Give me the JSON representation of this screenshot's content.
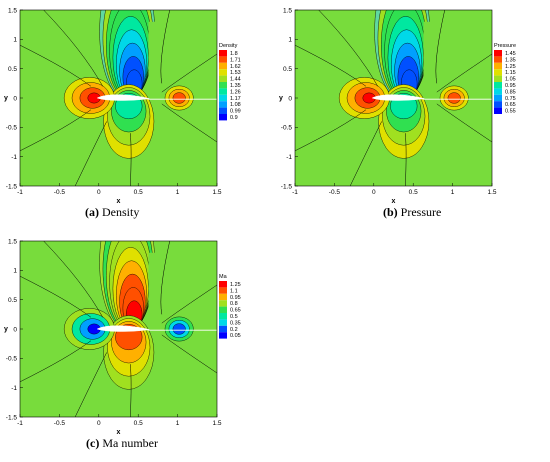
{
  "chart_data": [
    {
      "type": "heatmap",
      "id": "a",
      "caption_letter": "(a)",
      "caption_text": "Density",
      "xlabel": "x",
      "ylabel": "y",
      "xlim": [
        -1,
        1.5
      ],
      "ylim": [
        -1.5,
        1.5
      ],
      "xticks": [
        -1,
        -0.5,
        0,
        0.5,
        1,
        1.5
      ],
      "yticks": [
        -1.5,
        -1,
        -0.5,
        0,
        0.5,
        1,
        1.5
      ],
      "legend_title": "Density",
      "legend_levels": [
        1.8,
        1.71,
        1.62,
        1.53,
        1.44,
        1.35,
        1.26,
        1.17,
        1.08,
        0.99,
        0.9
      ],
      "colormap": "rainbow, blue (low) to red (high)",
      "field_note": "low values in supersonic pocket above airfoil, high at leading edge stagnation point"
    },
    {
      "type": "heatmap",
      "id": "b",
      "caption_letter": "(b)",
      "caption_text": "Pressure",
      "xlabel": "x",
      "ylabel": "y",
      "xlim": [
        -1,
        1.5
      ],
      "ylim": [
        -1.5,
        1.5
      ],
      "xticks": [
        -1,
        -0.5,
        0,
        0.5,
        1,
        1.5
      ],
      "yticks": [
        -1.5,
        -1,
        -0.5,
        0,
        0.5,
        1,
        1.5
      ],
      "legend_title": "Pressure",
      "legend_levels": [
        1.45,
        1.35,
        1.25,
        1.15,
        1.05,
        0.95,
        0.85,
        0.75,
        0.65,
        0.55
      ],
      "colormap": "rainbow, blue (low) to red (high)",
      "field_note": "low values in supersonic pocket above airfoil"
    },
    {
      "type": "heatmap",
      "id": "c",
      "caption_letter": "(c)",
      "caption_text": "Ma number",
      "xlabel": "x",
      "ylabel": "y",
      "xlim": [
        -1,
        1.5
      ],
      "ylim": [
        -1.5,
        1.5
      ],
      "xticks": [
        -1,
        -0.5,
        0,
        0.5,
        1,
        1.5
      ],
      "yticks": [
        -1.5,
        -1,
        -0.5,
        0,
        0.5,
        1,
        1.5
      ],
      "legend_title": "Ma",
      "legend_levels": [
        1.25,
        1.1,
        0.95,
        0.8,
        0.65,
        0.5,
        0.35,
        0.2,
        0.05
      ],
      "colormap": "rainbow, blue (low) to red (high)",
      "field_note": "high values in supersonic pocket above airfoil, low at leading edge"
    }
  ]
}
